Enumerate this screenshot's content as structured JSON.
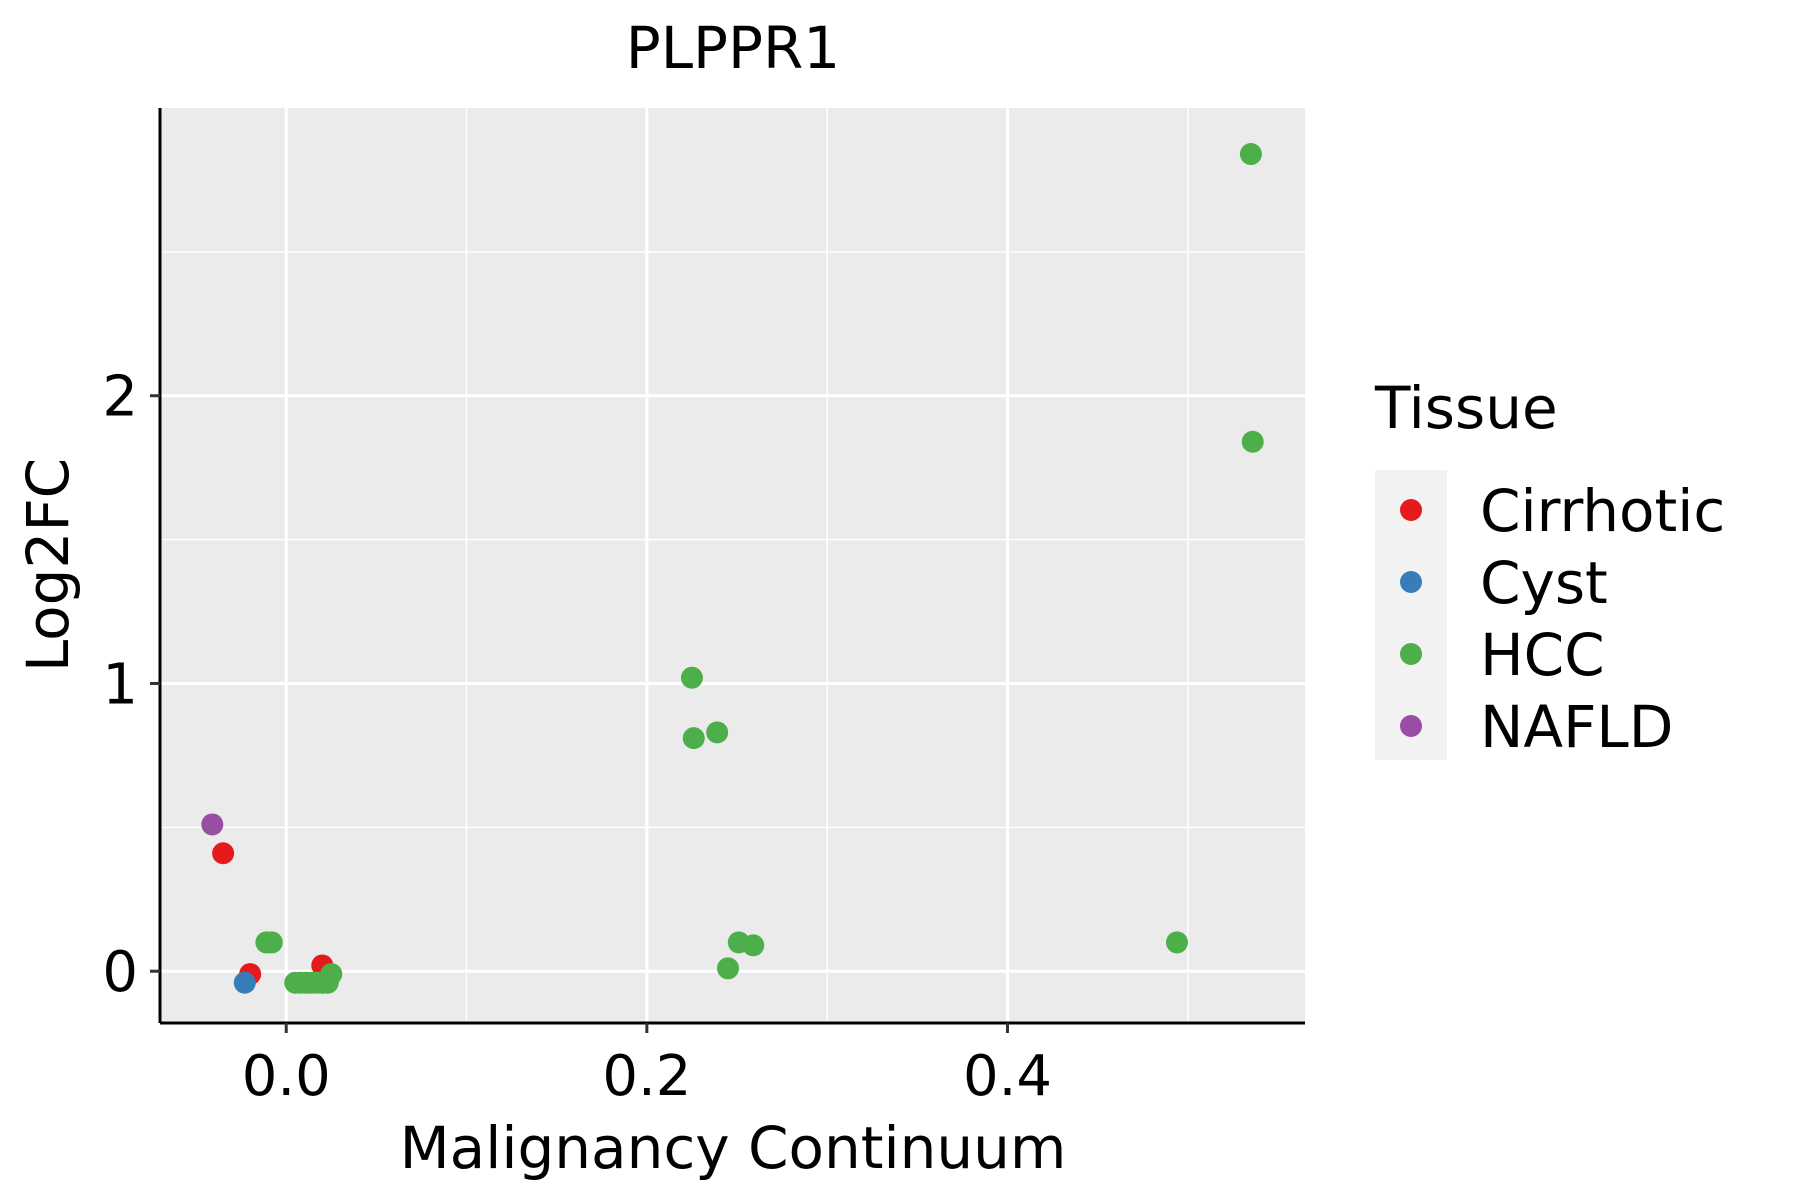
{
  "chart_data": {
    "type": "scatter",
    "title": "PLPPR1",
    "xlabel": "Malignancy Continuum",
    "ylabel": "Log2FC",
    "xlim": [
      -0.07,
      0.565
    ],
    "ylim": [
      -0.18,
      3.0
    ],
    "x_ticks": [
      0.0,
      0.2,
      0.4
    ],
    "x_tick_labels": [
      "0.0",
      "0.2",
      "0.4"
    ],
    "y_ticks": [
      0,
      1,
      2
    ],
    "y_tick_labels": [
      "0",
      "1",
      "2"
    ],
    "grid": true,
    "legend": {
      "title": "Tissue",
      "position": "right",
      "entries": [
        {
          "name": "Cirrhotic",
          "color": "#E41A1C"
        },
        {
          "name": "Cyst",
          "color": "#377EB8"
        },
        {
          "name": "HCC",
          "color": "#4DAF4A"
        },
        {
          "name": "NAFLD",
          "color": "#984EA3"
        }
      ]
    },
    "series": [
      {
        "name": "Cirrhotic",
        "color": "#E41A1C",
        "points": [
          {
            "x": -0.035,
            "y": 0.41
          },
          {
            "x": -0.02,
            "y": -0.01
          },
          {
            "x": 0.02,
            "y": 0.02
          }
        ]
      },
      {
        "name": "Cyst",
        "color": "#377EB8",
        "points": [
          {
            "x": -0.023,
            "y": -0.04
          }
        ]
      },
      {
        "name": "HCC",
        "color": "#4DAF4A",
        "points": [
          {
            "x": -0.011,
            "y": 0.1
          },
          {
            "x": -0.008,
            "y": 0.1
          },
          {
            "x": 0.005,
            "y": -0.04
          },
          {
            "x": 0.008,
            "y": -0.04
          },
          {
            "x": 0.011,
            "y": -0.04
          },
          {
            "x": 0.014,
            "y": -0.04
          },
          {
            "x": 0.017,
            "y": -0.04
          },
          {
            "x": 0.02,
            "y": -0.04
          },
          {
            "x": 0.023,
            "y": -0.04
          },
          {
            "x": 0.025,
            "y": -0.01
          },
          {
            "x": 0.225,
            "y": 1.02
          },
          {
            "x": 0.226,
            "y": 0.81
          },
          {
            "x": 0.239,
            "y": 0.83
          },
          {
            "x": 0.245,
            "y": 0.01
          },
          {
            "x": 0.251,
            "y": 0.1
          },
          {
            "x": 0.259,
            "y": 0.09
          },
          {
            "x": 0.494,
            "y": 0.1
          },
          {
            "x": 0.535,
            "y": 2.84
          },
          {
            "x": 0.536,
            "y": 1.84
          }
        ]
      },
      {
        "name": "NAFLD",
        "color": "#984EA3",
        "points": [
          {
            "x": -0.041,
            "y": 0.51
          }
        ]
      }
    ]
  }
}
